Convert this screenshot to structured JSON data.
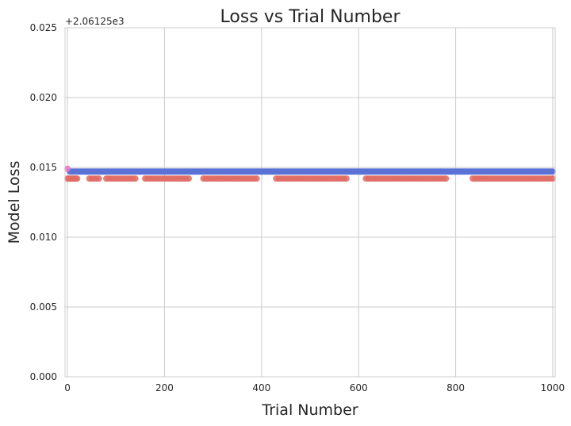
{
  "chart_data": {
    "type": "scatter",
    "title": "Loss vs Trial Number",
    "xlabel": "Trial Number",
    "ylabel": "Model Loss",
    "offset_text": "+2.06125e3",
    "xlim": [
      -5,
      1005
    ],
    "ylim": [
      0.0,
      0.025
    ],
    "xticks": [
      0,
      200,
      400,
      600,
      800,
      1000
    ],
    "xtick_labels": [
      "0",
      "200",
      "400",
      "600",
      "800",
      "1000"
    ],
    "yticks": [
      0.0,
      0.005,
      0.01,
      0.015,
      0.02,
      0.025
    ],
    "ytick_labels": [
      "0.000",
      "0.005",
      "0.010",
      "0.015",
      "0.020",
      "0.025"
    ],
    "grid": true,
    "series": [
      {
        "color": "#e06c65",
        "y": 0.0142,
        "x_ranges": [
          [
            0,
            20,
            2.5
          ],
          [
            45,
            65,
            5
          ],
          [
            80,
            140,
            5
          ],
          [
            160,
            250,
            5
          ],
          [
            280,
            390,
            5
          ],
          [
            430,
            575,
            5
          ],
          [
            615,
            780,
            5
          ],
          [
            835,
            1000,
            5
          ]
        ]
      },
      {
        "color": "#5b72d6",
        "y": 0.0147,
        "x_ranges": [
          [
            5,
            1000,
            2.5
          ]
        ]
      },
      {
        "color": "#e874c8",
        "y": 0.0149,
        "x_ranges": [
          [
            0,
            0,
            1
          ]
        ]
      }
    ]
  }
}
